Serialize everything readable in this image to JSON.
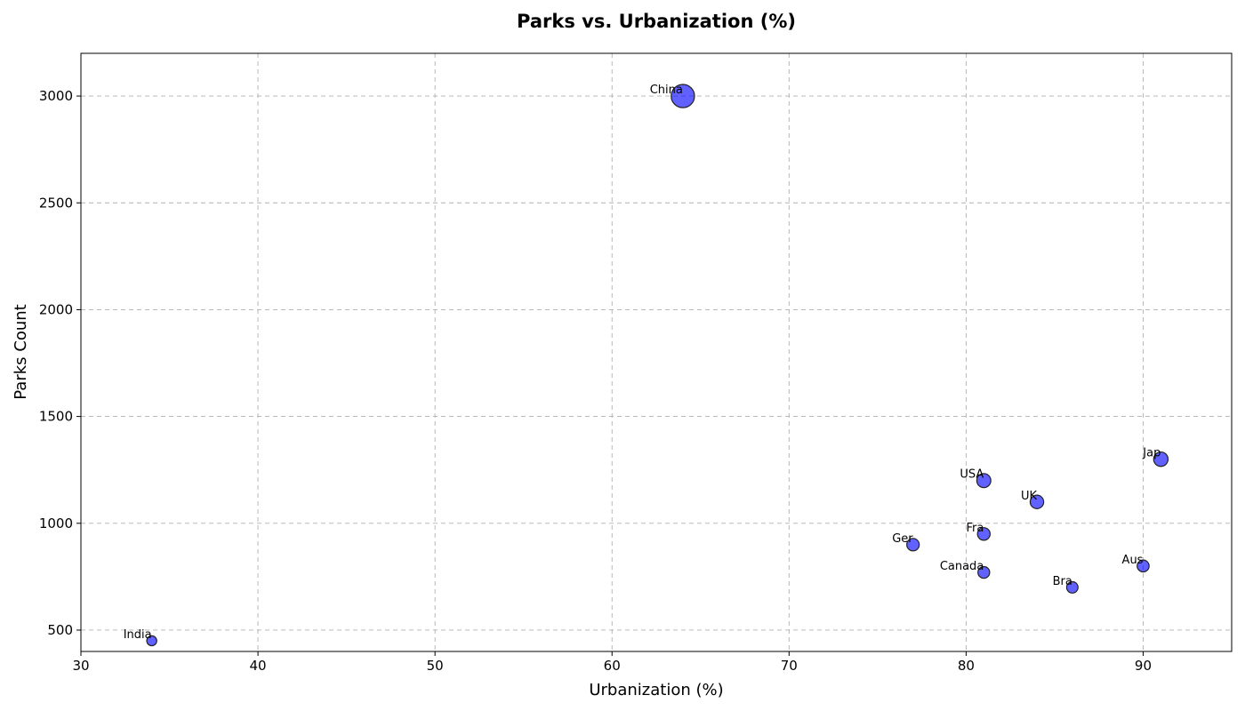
{
  "chart_data": {
    "type": "scatter",
    "title": "Parks vs. Urbanization (%)",
    "xlabel": "Urbanization (%)",
    "ylabel": "Parks Count",
    "xlim": [
      30,
      95
    ],
    "ylim": [
      400,
      3200
    ],
    "xticks": [
      30,
      40,
      50,
      60,
      70,
      80,
      90
    ],
    "yticks": [
      500,
      1000,
      1500,
      2000,
      2500,
      3000
    ],
    "grid": true,
    "point_color": "#0000ff",
    "points": [
      {
        "label": "China",
        "x": 64,
        "y": 3000
      },
      {
        "label": "Jap",
        "x": 91,
        "y": 1300
      },
      {
        "label": "USA",
        "x": 81,
        "y": 1200
      },
      {
        "label": "UK",
        "x": 84,
        "y": 1100
      },
      {
        "label": "Fra",
        "x": 81,
        "y": 950
      },
      {
        "label": "Ger",
        "x": 77,
        "y": 900
      },
      {
        "label": "Aus",
        "x": 90,
        "y": 800
      },
      {
        "label": "Canada",
        "x": 81,
        "y": 770
      },
      {
        "label": "Bra",
        "x": 86,
        "y": 700
      },
      {
        "label": "India",
        "x": 34,
        "y": 450
      }
    ]
  }
}
